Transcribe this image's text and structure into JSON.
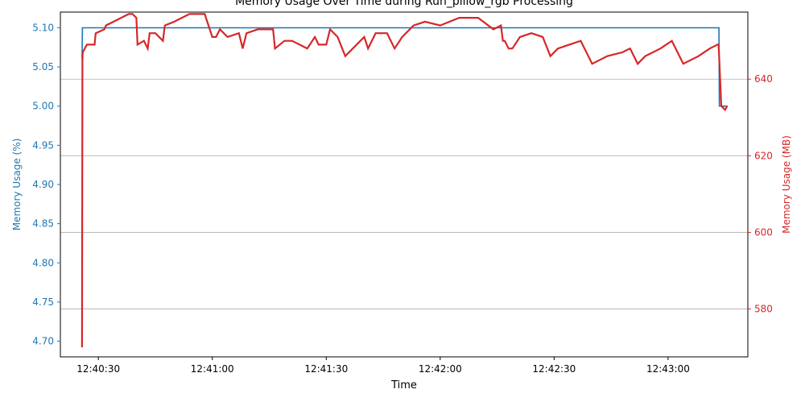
{
  "chart_data": {
    "type": "line",
    "title": "Memory Usage Over Time during Run_pillow_rgb Processing",
    "xlabel": "Time",
    "ylabel_left": "Memory Usage (%)",
    "ylabel_right": "Memory Usage (MB)",
    "x_unit": "time of day",
    "xlim": [
      "12:40:20",
      "12:43:21"
    ],
    "ylim_left": [
      4.68,
      5.12
    ],
    "ylim_right": [
      567.5,
      657.5
    ],
    "grid": "horizontal gridlines at right-axis ticks",
    "x_ticks": [
      "12:40:30",
      "12:41:00",
      "12:41:30",
      "12:42:00",
      "12:42:30",
      "12:43:00"
    ],
    "y_ticks_left": [
      4.7,
      4.75,
      4.8,
      4.85,
      4.9,
      4.95,
      5.0,
      5.05,
      5.1
    ],
    "y_ticks_right": [
      580,
      600,
      620,
      640
    ],
    "colors": {
      "left": "#1f77b4",
      "right": "#d62728"
    },
    "series": [
      {
        "axis": "left",
        "color": "#1f77b4",
        "x": [
          "12:40:25.7",
          "12:40:25.8",
          "12:43:13.4",
          "12:43:13.5",
          "12:43:15.6"
        ],
        "y": [
          5.06,
          5.1,
          5.1,
          5.0,
          5.0
        ]
      },
      {
        "axis": "right",
        "color": "#d62728",
        "x": [
          "12:40:25.7",
          "12:40:25.8",
          "12:40:25.9",
          "12:40:27",
          "12:40:29",
          "12:40:29.3",
          "12:40:31.6",
          "12:40:32",
          "12:40:34",
          "12:40:38",
          "12:40:39",
          "12:40:40",
          "12:40:40.3",
          "12:40:42",
          "12:40:43",
          "12:40:43.5",
          "12:40:45",
          "12:40:47",
          "12:40:47.5",
          "12:40:50",
          "12:40:54",
          "12:40:56",
          "12:40:58",
          "12:41:00",
          "12:41:01",
          "12:41:02",
          "12:41:04",
          "12:41:07",
          "12:41:08",
          "12:41:09",
          "12:41:12",
          "12:41:15",
          "12:41:16",
          "12:41:16.5",
          "12:41:19",
          "12:41:21",
          "12:41:25",
          "12:41:27",
          "12:41:28",
          "12:41:30",
          "12:41:31",
          "12:41:33",
          "12:41:35",
          "12:41:39",
          "12:41:40",
          "12:41:41",
          "12:41:43",
          "12:41:46",
          "12:41:48",
          "12:41:50",
          "12:41:53",
          "12:41:56",
          "12:42:00",
          "12:42:05",
          "12:42:10",
          "12:42:14",
          "12:42:16",
          "12:42:16.5",
          "12:42:17",
          "12:42:18",
          "12:42:19",
          "12:42:21",
          "12:42:24",
          "12:42:27",
          "12:42:29",
          "12:42:31",
          "12:42:34",
          "12:42:37",
          "12:42:38",
          "12:42:40",
          "12:42:44",
          "12:42:48",
          "12:42:50",
          "12:42:51",
          "12:42:52",
          "12:42:54",
          "12:42:58",
          "12:43:01",
          "12:43:04",
          "12:43:08",
          "12:43:11",
          "12:43:13",
          "12:43:13.3",
          "12:43:14",
          "12:43:15",
          "12:43:15.6"
        ],
        "y": [
          570,
          645,
          647,
          649,
          649,
          652,
          653,
          654,
          655,
          657,
          657,
          656,
          649,
          650,
          648,
          652,
          652,
          650,
          654,
          655,
          657,
          657,
          657,
          651,
          651,
          653,
          651,
          652,
          648,
          652,
          653,
          653,
          653,
          648,
          650,
          650,
          648,
          651,
          649,
          649,
          653,
          651,
          646,
          650,
          651,
          648,
          652,
          652,
          648,
          651,
          654,
          655,
          654,
          656,
          656,
          653,
          654,
          650,
          650,
          648,
          648,
          651,
          652,
          651,
          646,
          648,
          649,
          650,
          648,
          644,
          646,
          647,
          648,
          646,
          644,
          646,
          648,
          650,
          644,
          646,
          648,
          649,
          649,
          633,
          632,
          633
        ]
      }
    ]
  }
}
